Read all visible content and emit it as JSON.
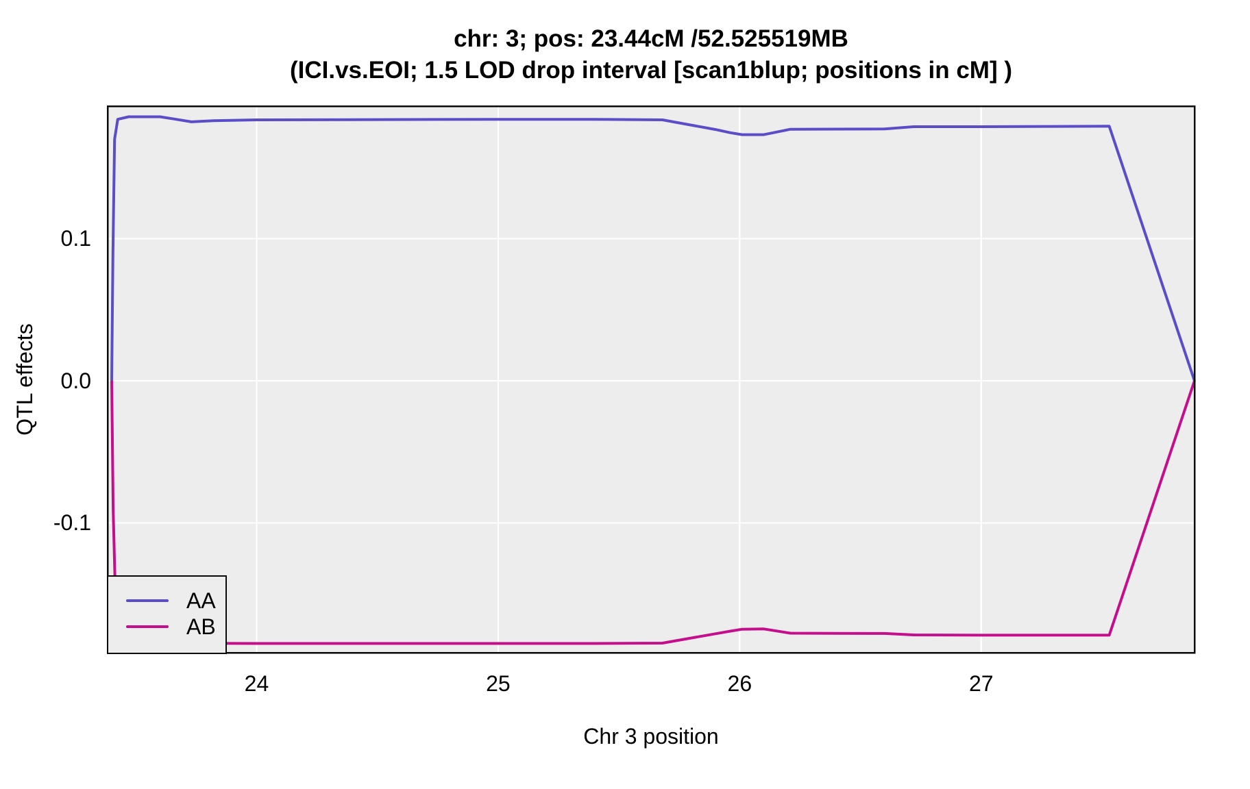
{
  "chart_data": {
    "type": "line",
    "title": "chr: 3; pos: 23.44cM /52.525519MB",
    "subtitle": "(ICI.vs.EOI; 1.5 LOD drop interval [scan1blup; positions in cM] )",
    "xlabel": "Chr 3 position",
    "ylabel": "QTL effects",
    "xlim": [
      23.383,
      27.883
    ],
    "ylim": [
      -0.19133,
      0.19325
    ],
    "x_ticks": [
      {
        "value": 24,
        "label": "24"
      },
      {
        "value": 25,
        "label": "25"
      },
      {
        "value": 26,
        "label": "26"
      },
      {
        "value": 27,
        "label": "27"
      }
    ],
    "y_ticks": [
      {
        "value": 0.1,
        "label": "0.1"
      },
      {
        "value": 0.0,
        "label": "0.0"
      },
      {
        "value": -0.1,
        "label": "-0.1"
      }
    ],
    "grid": "major only, white lines on gray panel",
    "legend_position": "bottom-left",
    "panel_bg_color": "#EDEDED",
    "grid_color": "#FFFFFF",
    "border_color": "#0a0a0a",
    "series": [
      {
        "name": "AA",
        "color": "#5B4CC8",
        "x": [
          23.4,
          23.405,
          23.412,
          23.425,
          23.47,
          23.6,
          23.66,
          23.73,
          23.82,
          24.0,
          24.5,
          25.0,
          25.4,
          25.68,
          25.9,
          25.96,
          26.01,
          26.1,
          26.21,
          26.4,
          26.6,
          26.72,
          27.0,
          27.3,
          27.53,
          27.883
        ],
        "y": [
          0.0,
          0.09,
          0.17,
          0.184,
          0.1858,
          0.1858,
          0.1842,
          0.1822,
          0.183,
          0.1836,
          0.1838,
          0.184,
          0.184,
          0.1836,
          0.1768,
          0.1746,
          0.1732,
          0.1732,
          0.177,
          0.1771,
          0.1772,
          0.1788,
          0.1788,
          0.179,
          0.1792,
          0.0
        ]
      },
      {
        "name": "AB",
        "color": "#C40E8C",
        "x": [
          23.4,
          23.406,
          23.415,
          23.435,
          23.47,
          23.6,
          24.0,
          24.5,
          25.0,
          25.4,
          25.68,
          25.9,
          25.96,
          26.01,
          26.1,
          26.21,
          26.4,
          26.6,
          26.72,
          27.0,
          27.3,
          27.53,
          27.883
        ],
        "y": [
          0.0,
          -0.09,
          -0.15,
          -0.178,
          -0.184,
          -0.1846,
          -0.1848,
          -0.1848,
          -0.1848,
          -0.1848,
          -0.1846,
          -0.178,
          -0.1762,
          -0.1748,
          -0.1746,
          -0.1776,
          -0.1777,
          -0.1778,
          -0.1788,
          -0.179,
          -0.179,
          -0.179,
          0.0
        ]
      }
    ]
  }
}
